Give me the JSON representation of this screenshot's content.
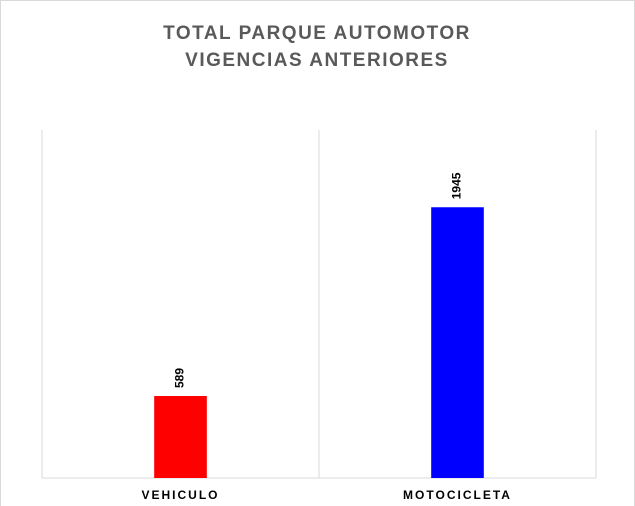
{
  "chart_data": {
    "type": "bar",
    "title": "TOTAL PARQUE AUTOMOTOR VIGENCIAS ANTERIORES",
    "categories": [
      "VEHICULO",
      "MOTOCICLETA"
    ],
    "values": [
      589,
      1945
    ],
    "colors": [
      "#ff0000",
      "#0000ff"
    ],
    "ylim": [
      0,
      2500
    ]
  }
}
